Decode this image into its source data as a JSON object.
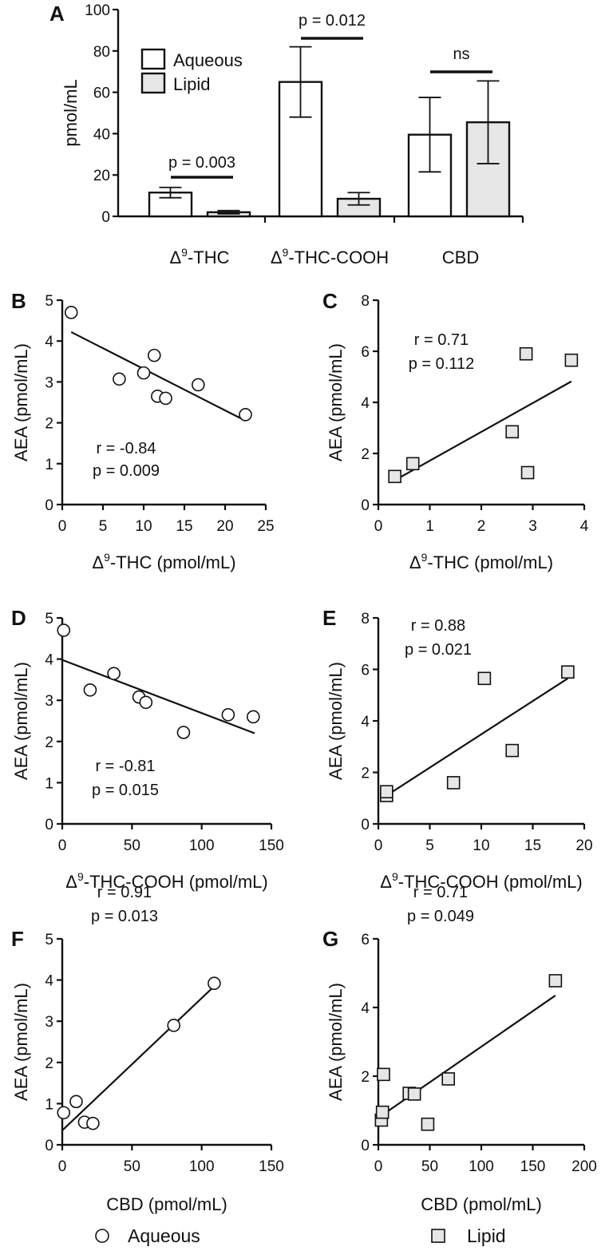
{
  "chart_data": [
    {
      "panel": "A",
      "type": "bar",
      "ylabel": "pmol/mL",
      "ylim": [
        0,
        100
      ],
      "yticks": [
        0,
        20,
        40,
        60,
        80,
        100
      ],
      "categories": [
        "Δ9-THC",
        "Δ9-THC-COOH",
        "CBD"
      ],
      "category_labels": [
        {
          "base": "Δ",
          "sup": "9",
          "rest": "-THC"
        },
        {
          "base": "Δ",
          "sup": "9",
          "rest": "-THC-COOH"
        },
        {
          "base": "",
          "sup": "",
          "rest": "CBD"
        }
      ],
      "series": [
        {
          "name": "Aqueous",
          "values": [
            11.5,
            65,
            39.5
          ],
          "error": [
            2.5,
            17,
            18
          ],
          "color": "#ffffff"
        },
        {
          "name": "Lipid",
          "values": [
            2,
            8.5,
            45.5
          ],
          "error": [
            0.8,
            3,
            20
          ],
          "color": "#e6e6e6"
        }
      ],
      "significance": [
        "p = 0.003",
        "p = 0.012",
        "ns"
      ],
      "legend": "top-left"
    },
    {
      "panel": "B",
      "type": "scatter",
      "marker": "circle",
      "xlabel": {
        "base": "Δ",
        "sup": "9",
        "rest": "-THC (pmol/mL)"
      },
      "ylabel": "AEA (pmol/mL)",
      "xlim": [
        0,
        25
      ],
      "ylim": [
        0,
        5
      ],
      "xticks": [
        0,
        5,
        10,
        15,
        20,
        25
      ],
      "yticks": [
        0,
        1,
        2,
        3,
        4,
        5
      ],
      "x": [
        1.1,
        7,
        10,
        11.3,
        11.7,
        12.7,
        16.7,
        22.5
      ],
      "y": [
        4.7,
        3.07,
        3.22,
        3.65,
        2.65,
        2.6,
        2.93,
        2.2
      ],
      "fit": [
        [
          1.1,
          4.22
        ],
        [
          22.5,
          2.05
        ]
      ],
      "r": "r = -0.84",
      "p": "p = 0.009"
    },
    {
      "panel": "C",
      "type": "scatter",
      "marker": "square",
      "xlabel": {
        "base": "Δ",
        "sup": "9",
        "rest": "-THC (pmol/mL)"
      },
      "ylabel": "AEA (pmol/mL)",
      "xlim": [
        0,
        4
      ],
      "ylim": [
        0,
        8
      ],
      "xticks": [
        0,
        1,
        2,
        3,
        4
      ],
      "yticks": [
        0,
        2,
        4,
        6,
        8
      ],
      "x": [
        0.32,
        0.67,
        2.6,
        2.9,
        2.87,
        3.75
      ],
      "y": [
        1.1,
        1.6,
        2.85,
        1.25,
        5.9,
        5.65
      ],
      "fit": [
        [
          0.32,
          0.95
        ],
        [
          3.75,
          4.82
        ]
      ],
      "r": "r = 0.71",
      "p": "p = 0.112"
    },
    {
      "panel": "D",
      "type": "scatter",
      "marker": "circle",
      "xlabel": {
        "base": "Δ",
        "sup": "9",
        "rest": "-THC-COOH (pmol/mL)"
      },
      "ylabel": "AEA (pmol/mL)",
      "xlim": [
        0,
        150
      ],
      "ylim": [
        0,
        5
      ],
      "xticks": [
        0,
        50,
        100,
        150
      ],
      "yticks": [
        0,
        1,
        2,
        3,
        4,
        5
      ],
      "x": [
        1,
        20,
        37,
        55,
        60,
        87,
        119,
        137
      ],
      "y": [
        4.7,
        3.25,
        3.65,
        3.08,
        2.95,
        2.22,
        2.65,
        2.6
      ],
      "fit": [
        [
          0,
          3.98
        ],
        [
          138,
          2.2
        ]
      ],
      "r": "r = -0.81",
      "p": "p = 0.015"
    },
    {
      "panel": "E",
      "type": "scatter",
      "marker": "square",
      "xlabel": {
        "base": "Δ",
        "sup": "9",
        "rest": "-THC-COOH (pmol/mL)"
      },
      "ylabel": "AEA (pmol/mL)",
      "xlim": [
        0,
        20
      ],
      "ylim": [
        0,
        8
      ],
      "xticks": [
        0,
        5,
        10,
        15,
        20
      ],
      "yticks": [
        0,
        2,
        4,
        6,
        8
      ],
      "x": [
        0.8,
        0.8,
        7.3,
        10.3,
        13,
        18.4
      ],
      "y": [
        1.1,
        1.25,
        1.6,
        5.65,
        2.85,
        5.9
      ],
      "fit": [
        [
          0.6,
          1.05
        ],
        [
          18.4,
          5.65
        ]
      ],
      "r": "r = 0.88",
      "p": "p = 0.021"
    },
    {
      "panel": "F",
      "type": "scatter",
      "marker": "circle",
      "xlabel": {
        "base": "",
        "sup": "",
        "rest": "CBD (pmol/mL)"
      },
      "ylabel": "AEA (pmol/mL)",
      "xlim": [
        0,
        150
      ],
      "ylim": [
        0,
        5
      ],
      "xticks": [
        0,
        50,
        100,
        150
      ],
      "yticks": [
        0,
        1,
        2,
        3,
        4,
        5
      ],
      "x": [
        1,
        10,
        16,
        22,
        80,
        109
      ],
      "y": [
        0.78,
        1.05,
        0.55,
        0.52,
        2.9,
        3.92
      ],
      "fit": [
        [
          0,
          0.35
        ],
        [
          109,
          3.85
        ]
      ],
      "r": "r = 0.91",
      "p": "p = 0.013"
    },
    {
      "panel": "G",
      "type": "scatter",
      "marker": "square",
      "xlabel": {
        "base": "",
        "sup": "",
        "rest": "CBD (pmol/mL)"
      },
      "ylabel": "AEA (pmol/mL)",
      "xlim": [
        0,
        200
      ],
      "ylim": [
        0,
        6
      ],
      "xticks": [
        0,
        50,
        100,
        150,
        200
      ],
      "yticks": [
        0,
        2,
        4,
        6
      ],
      "x": [
        3,
        4,
        5,
        30,
        35,
        48,
        68,
        172
      ],
      "y": [
        0.72,
        0.95,
        2.05,
        1.5,
        1.48,
        0.6,
        1.92,
        4.78
      ],
      "fit": [
        [
          3,
          0.85
        ],
        [
          172,
          4.35
        ]
      ],
      "r": "r = 0.71",
      "p": "p = 0.049"
    }
  ],
  "bottom_legend": {
    "aqueous": "Aqueous",
    "lipid": "Lipid"
  }
}
